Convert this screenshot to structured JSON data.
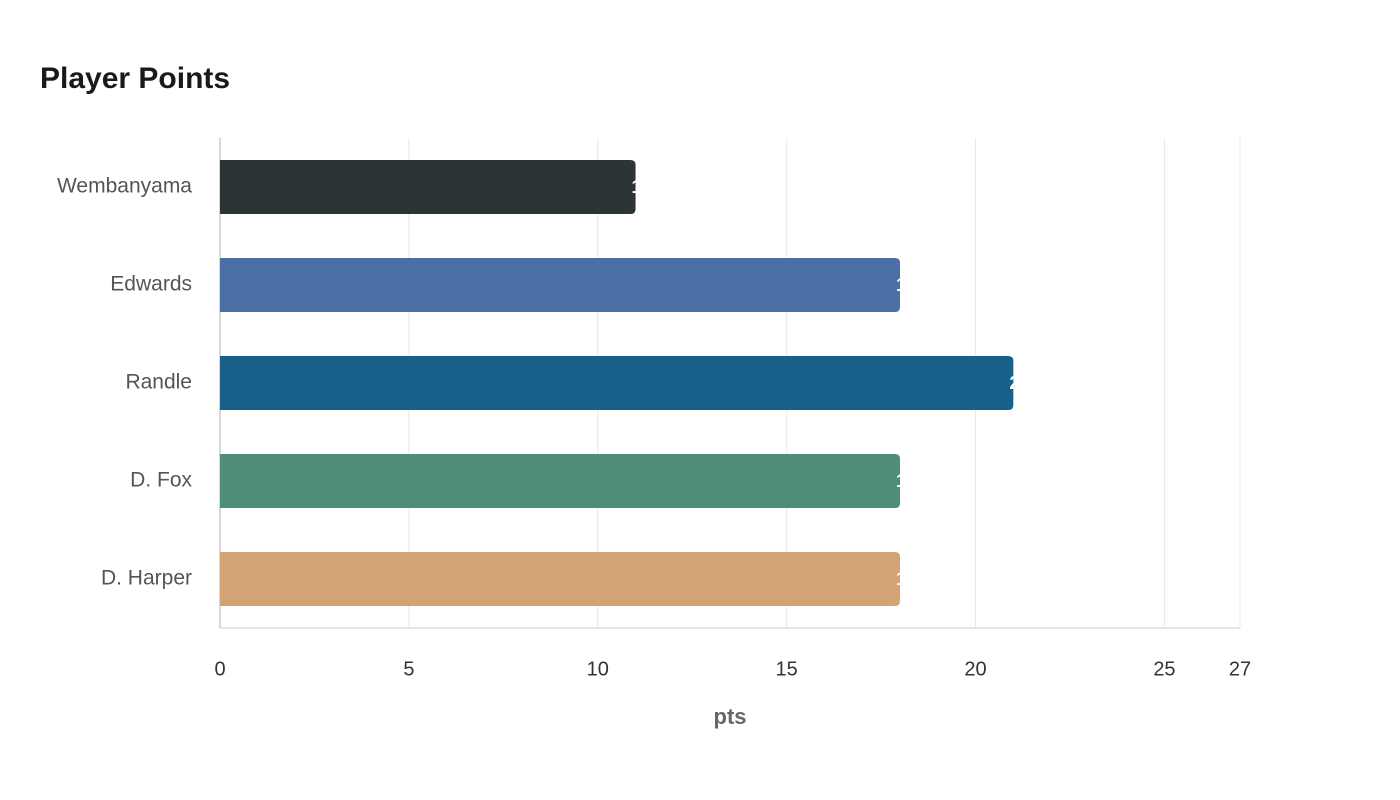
{
  "chart_data": {
    "type": "barh",
    "title": "Player Points",
    "xlabel": "pts",
    "categories": [
      "Wembanyama",
      "Edwards",
      "Randle",
      "D. Fox",
      "D. Harper"
    ],
    "values": [
      11,
      18,
      21,
      18,
      18
    ],
    "colors": [
      "#2d3436",
      "#4a6fa5",
      "#17608a",
      "#4e8d7a",
      "#d4a373"
    ],
    "xlim": [
      0,
      27
    ],
    "xticks": [
      0,
      5,
      10,
      15,
      20,
      25,
      27
    ],
    "grid": true
  }
}
